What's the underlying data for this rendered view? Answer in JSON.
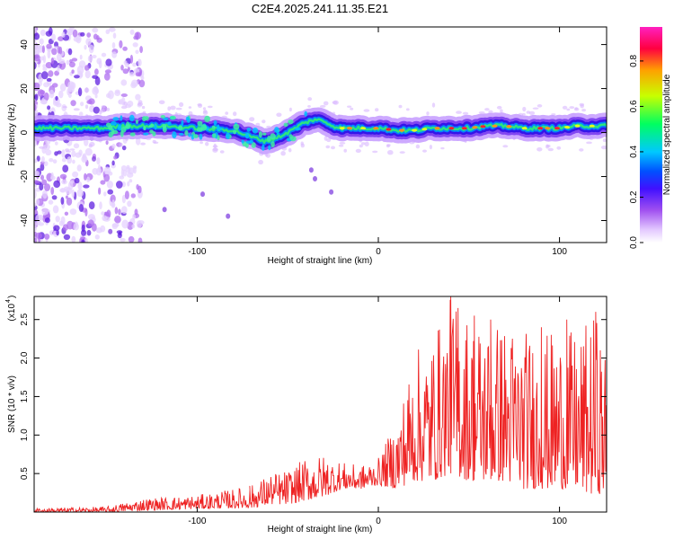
{
  "title": "C2E4.2025.241.11.35.E21",
  "chart_data": [
    {
      "type": "heatmap",
      "title": "C2E4.2025.241.11.35.E21",
      "xlabel": "Height of straight line (km)",
      "ylabel": "Frequency (Hz)",
      "xlim": [
        -190,
        126
      ],
      "ylim": [
        -50,
        48
      ],
      "x_ticks": [
        "-100",
        "0",
        "100"
      ],
      "x_tick_values": [
        -100,
        0,
        100
      ],
      "y_ticks": [
        "40",
        "20",
        "0",
        "-20",
        "-40"
      ],
      "y_tick_values": [
        40,
        20,
        0,
        -20,
        -40
      ],
      "colorbar": {
        "label": "Normalized spectral amplitude",
        "range": [
          0,
          0.95
        ],
        "ticks": [
          "0.0",
          "0.2",
          "0.4",
          "0.6",
          "0.8"
        ],
        "tick_values": [
          0.0,
          0.2,
          0.4,
          0.6,
          0.8
        ],
        "colors": [
          "#ffffff",
          "#e3c8ff",
          "#a050f0",
          "#4010ff",
          "#0050ff",
          "#00c8ff",
          "#00ff60",
          "#c8ff00",
          "#ffa000",
          "#ff0040",
          "#ff20c0"
        ]
      },
      "ridge": {
        "x": [
          -190,
          -170,
          -150,
          -140,
          -120,
          -100,
          -80,
          -70,
          -62,
          -55,
          -50,
          -42,
          -35,
          -30,
          -25,
          -20,
          -10,
          0,
          10,
          20,
          30,
          40,
          50,
          60,
          70,
          80,
          90,
          100,
          110,
          120,
          126
        ],
        "y": [
          2,
          2,
          2,
          3,
          3,
          2,
          1,
          -2,
          -4,
          -2,
          0,
          4,
          6,
          5,
          3,
          2,
          2,
          2,
          1,
          1,
          2,
          2,
          2,
          3,
          3,
          2,
          2,
          2,
          3,
          3,
          3
        ]
      },
      "noise_spots": {
        "x": [
          -37,
          -35,
          -26,
          -83,
          -97,
          -118,
          -148,
          -157
        ],
        "y": [
          -17,
          -21,
          -27,
          -38,
          -28,
          -35,
          -45,
          -12
        ]
      }
    },
    {
      "type": "line",
      "xlabel": "Height of straight line (km)",
      "ylabel": "SNR (10 * v/v)",
      "multiplier_label": "(x10",
      "multiplier_exponent": "4",
      "xlim": [
        -190,
        126
      ],
      "ylim": [
        0,
        2.8
      ],
      "x_ticks": [
        "-100",
        "0",
        "100"
      ],
      "x_tick_values": [
        -100,
        0,
        100
      ],
      "y_ticks": [
        "0.5",
        "1.0",
        "1.5",
        "2.0",
        "2.5"
      ],
      "y_tick_values": [
        0.5,
        1.0,
        1.5,
        2.0,
        2.5
      ],
      "color": "#ee2222",
      "envelope": {
        "x": [
          -190,
          -150,
          -130,
          -100,
          -80,
          -70,
          -60,
          -50,
          -40,
          -30,
          -20,
          -10,
          0,
          10,
          20,
          30,
          40,
          50,
          60,
          70,
          80,
          90,
          100,
          110,
          120,
          126
        ],
        "min": [
          0.0,
          0.0,
          0.02,
          0.04,
          0.05,
          0.05,
          0.1,
          0.1,
          0.15,
          0.2,
          0.3,
          0.3,
          0.35,
          0.3,
          0.4,
          0.4,
          0.5,
          0.4,
          0.4,
          0.4,
          0.3,
          0.3,
          0.3,
          0.3,
          0.2,
          0.3
        ],
        "max": [
          0.05,
          0.07,
          0.18,
          0.22,
          0.3,
          0.35,
          0.5,
          0.55,
          0.7,
          0.75,
          0.65,
          0.6,
          0.7,
          1.2,
          2.1,
          2.3,
          2.8,
          2.6,
          2.5,
          2.5,
          2.4,
          2.3,
          2.4,
          2.3,
          2.6,
          2.0
        ]
      },
      "peaks": {
        "x": [
          -71,
          40,
          44,
          53,
          62,
          90,
          104,
          120
        ],
        "y": [
          0.34,
          2.8,
          2.65,
          2.55,
          2.5,
          2.4,
          2.5,
          2.6
        ]
      }
    }
  ]
}
